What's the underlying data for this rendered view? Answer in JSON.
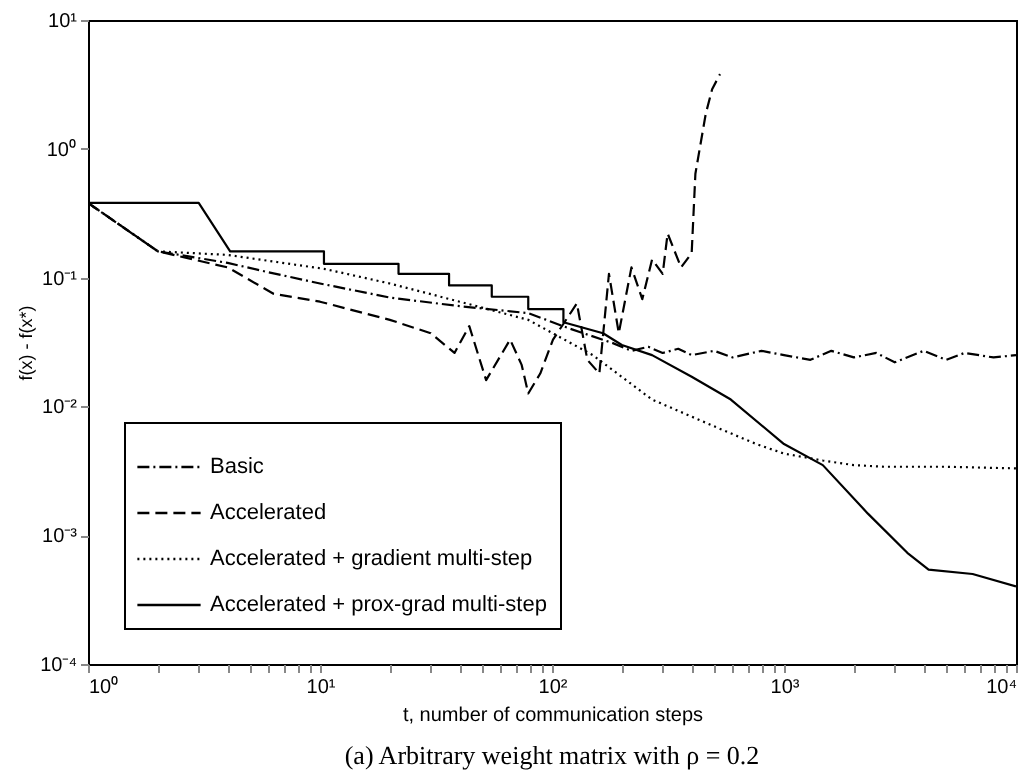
{
  "chart_data": {
    "type": "line",
    "xlabel": "t, number of communication steps",
    "ylabel": "f(x) - f(x*)",
    "annotations": [
      "(a) Arbitrary weight matrix with ρ = 0.2"
    ],
    "log": "xy",
    "grid": false,
    "legend": "bottom left",
    "xlim": [
      1,
      10000
    ],
    "ylim": [
      0.0001,
      10
    ],
    "xticks": [
      {
        "value": 1,
        "label": "10⁰"
      },
      {
        "value": 2,
        "label": null
      },
      {
        "value": 3,
        "label": null
      },
      {
        "value": 4,
        "label": null
      },
      {
        "value": 5,
        "label": null
      },
      {
        "value": 6,
        "label": null
      },
      {
        "value": 7,
        "label": null
      },
      {
        "value": 8,
        "label": null
      },
      {
        "value": 9,
        "label": null
      },
      {
        "value": 10,
        "label": "10¹"
      },
      {
        "value": 20,
        "label": null
      },
      {
        "value": 30,
        "label": null
      },
      {
        "value": 40,
        "label": null
      },
      {
        "value": 50,
        "label": null
      },
      {
        "value": 60,
        "label": null
      },
      {
        "value": 70,
        "label": null
      },
      {
        "value": 80,
        "label": null
      },
      {
        "value": 90,
        "label": null
      },
      {
        "value": 100,
        "label": "10²"
      },
      {
        "value": 200,
        "label": null
      },
      {
        "value": 300,
        "label": null
      },
      {
        "value": 400,
        "label": null
      },
      {
        "value": 500,
        "label": null
      },
      {
        "value": 600,
        "label": null
      },
      {
        "value": 700,
        "label": null
      },
      {
        "value": 800,
        "label": null
      },
      {
        "value": 900,
        "label": null
      },
      {
        "value": 1000,
        "label": "10³"
      },
      {
        "value": 2000,
        "label": null
      },
      {
        "value": 3000,
        "label": null
      },
      {
        "value": 4000,
        "label": null
      },
      {
        "value": 5000,
        "label": null
      },
      {
        "value": 6000,
        "label": null
      },
      {
        "value": 7000,
        "label": null
      },
      {
        "value": 8000,
        "label": null
      },
      {
        "value": 9000,
        "label": null
      },
      {
        "value": 10000,
        "label": "10⁴"
      }
    ],
    "yticks": [
      {
        "value": 0.0001,
        "label": "10⁻⁴"
      },
      {
        "value": 0.001,
        "label": "10⁻³"
      },
      {
        "value": 0.01,
        "label": "10⁻²"
      },
      {
        "value": 0.1,
        "label": "10⁻¹"
      },
      {
        "value": 1,
        "label": "10⁰"
      },
      {
        "value": 10,
        "label": "10¹"
      }
    ],
    "series": [
      {
        "name": "Basic",
        "color": "#000000",
        "line_style": "dashdot",
        "x": [
          1,
          2,
          4,
          6,
          10,
          20,
          40,
          79,
          120,
          183,
          220,
          260,
          300,
          350,
          400,
          500,
          600,
          800,
          1000,
          1300,
          1600,
          2000,
          2500,
          3000,
          4000,
          5000,
          6000,
          8000,
          10000
        ],
        "values": [
          0.38,
          0.16,
          0.13,
          0.11,
          0.09,
          0.07,
          0.06,
          0.053,
          0.04,
          0.031,
          0.027,
          0.029,
          0.026,
          0.028,
          0.025,
          0.027,
          0.024,
          0.027,
          0.025,
          0.023,
          0.027,
          0.024,
          0.026,
          0.022,
          0.027,
          0.023,
          0.026,
          0.024,
          0.025
        ]
      },
      {
        "name": "Accelerated",
        "color": "#000000",
        "line_style": "dashed",
        "x": [
          1,
          2,
          4,
          6.3,
          10,
          20,
          30,
          38,
          44,
          52,
          66,
          74,
          79,
          89,
          101,
          128,
          142,
          160,
          176,
          194,
          220,
          245,
          270,
          300,
          315,
          360,
          400,
          415,
          460,
          490,
          530
        ],
        "values": [
          0.38,
          0.16,
          0.12,
          0.075,
          0.065,
          0.047,
          0.037,
          0.026,
          0.042,
          0.016,
          0.033,
          0.021,
          0.0126,
          0.018,
          0.033,
          0.063,
          0.023,
          0.018,
          0.107,
          0.037,
          0.12,
          0.068,
          0.138,
          0.107,
          0.22,
          0.12,
          0.155,
          0.64,
          1.87,
          2.9,
          3.8
        ]
      },
      {
        "name": "Accelerated + gradient multi-step",
        "color": "#000000",
        "line_style": "dotted",
        "x": [
          1,
          2,
          4,
          10.4,
          20,
          40,
          79,
          150,
          270,
          500,
          760,
          1000,
          1470,
          2000,
          2700,
          5000,
          10000
        ],
        "values": [
          0.38,
          0.16,
          0.15,
          0.117,
          0.09,
          0.065,
          0.047,
          0.025,
          0.0113,
          0.007,
          0.0051,
          0.0043,
          0.0038,
          0.0035,
          0.0034,
          0.0034,
          0.0033
        ]
      },
      {
        "name": "Accelerated + prox-grad multi-step",
        "color": "#000000",
        "line_style": "solid",
        "x": [
          1,
          3,
          4.1,
          10.4,
          10.4,
          21.8,
          21.8,
          36,
          36,
          55,
          55,
          79,
          79,
          112,
          112,
          166,
          200,
          270,
          400,
          590,
          1000,
          1470,
          2300,
          3400,
          4200,
          6500,
          10000
        ],
        "values": [
          0.38,
          0.38,
          0.16,
          0.16,
          0.128,
          0.128,
          0.107,
          0.107,
          0.087,
          0.087,
          0.071,
          0.071,
          0.057,
          0.057,
          0.045,
          0.037,
          0.03,
          0.025,
          0.017,
          0.0113,
          0.0051,
          0.0035,
          0.00147,
          0.00073,
          0.00054,
          0.0005,
          0.0004
        ]
      }
    ]
  }
}
